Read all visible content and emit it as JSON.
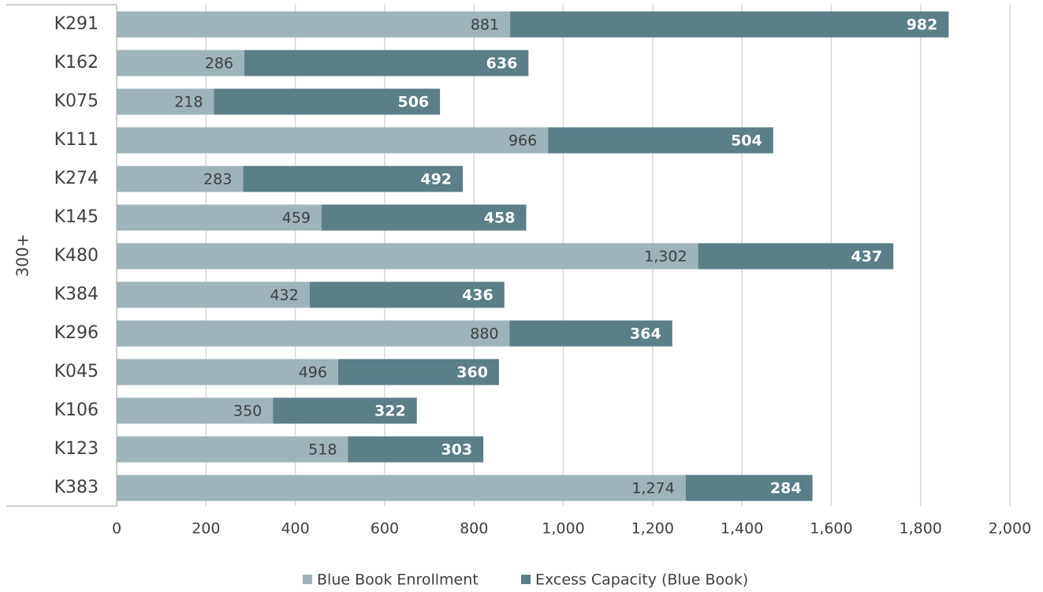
{
  "chart_data": {
    "type": "bar",
    "orientation": "horizontal",
    "stacked": true,
    "group_label": "300+",
    "categories": [
      "K291",
      "K162",
      "K075",
      "K111",
      "K274",
      "K145",
      "K480",
      "K384",
      "K296",
      "K045",
      "K106",
      "K123",
      "K383"
    ],
    "series": [
      {
        "name": "Blue Book Enrollment",
        "color": "#9eb3ba",
        "label_color": "#404040",
        "values": [
          881,
          286,
          218,
          966,
          283,
          459,
          1302,
          432,
          880,
          496,
          350,
          518,
          1274
        ],
        "labels": [
          "881",
          "286",
          "218",
          "966",
          "283",
          "459",
          "1,302",
          "432",
          "880",
          "496",
          "350",
          "518",
          "1,274"
        ]
      },
      {
        "name": "Excess Capacity (Blue Book)",
        "color": "#5b7e87",
        "label_color": "#ffffff",
        "values": [
          982,
          636,
          506,
          504,
          492,
          458,
          437,
          436,
          364,
          360,
          322,
          303,
          284
        ],
        "labels": [
          "982",
          "636",
          "506",
          "504",
          "492",
          "458",
          "437",
          "436",
          "364",
          "360",
          "322",
          "303",
          "284"
        ]
      }
    ],
    "xlim": [
      0,
      2000
    ],
    "xticks": [
      0,
      200,
      400,
      600,
      800,
      1000,
      1200,
      1400,
      1600,
      1800,
      2000
    ],
    "xtick_labels": [
      "0",
      "200",
      "400",
      "600",
      "800",
      "1,000",
      "1,200",
      "1,400",
      "1,600",
      "1,800",
      "2,000"
    ],
    "grid": "vertical",
    "legend": "bottom"
  }
}
